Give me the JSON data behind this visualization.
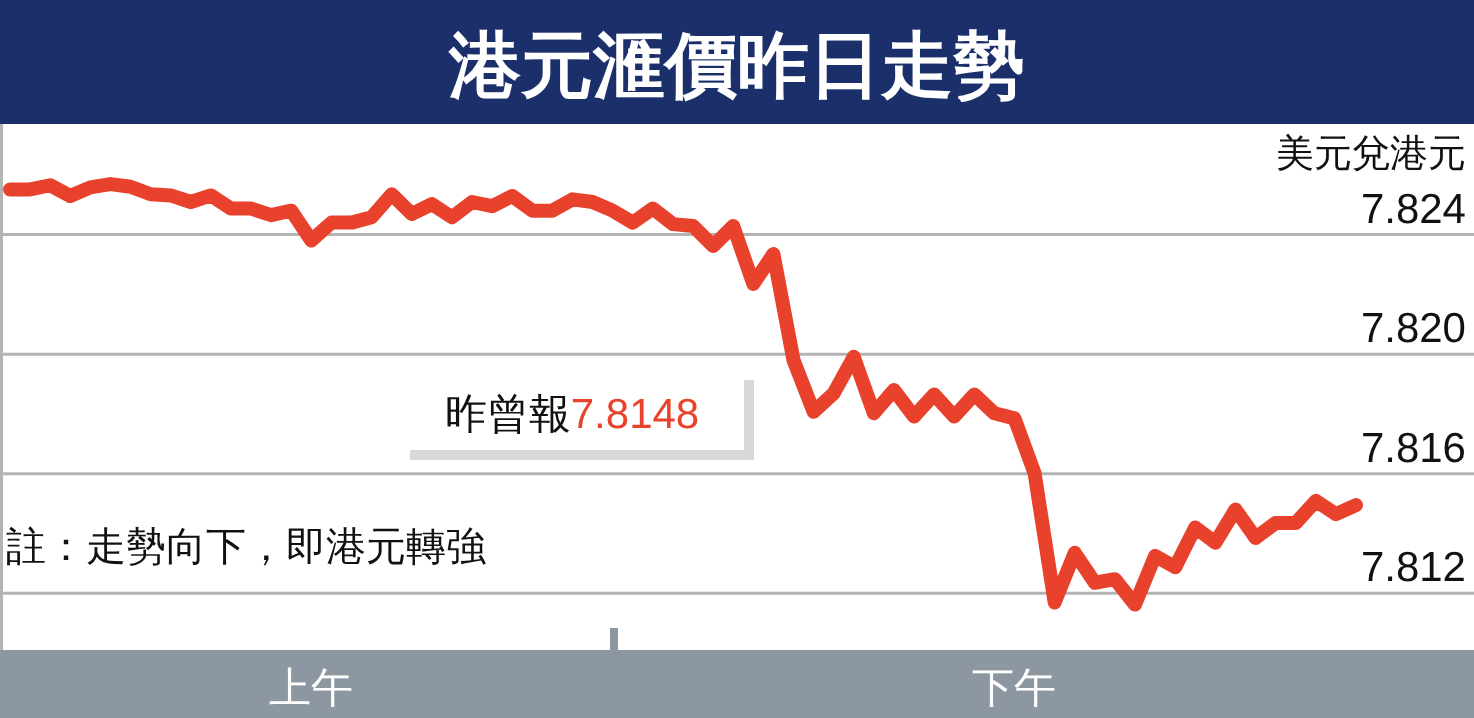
{
  "chart_data": {
    "type": "line",
    "title": "港元滙價昨日走勢",
    "ylabel": "美元兌港元",
    "annotations": [
      "昨曾報7.8148",
      "註：走勢向下，即港元轉強"
    ],
    "categories": [
      null,
      null,
      null,
      null,
      null,
      null,
      null,
      null,
      null,
      null,
      null,
      null,
      null,
      null,
      null,
      "上午",
      null,
      null,
      null,
      null,
      null,
      null,
      null,
      null,
      null,
      null,
      null,
      null,
      null,
      null,
      null,
      null,
      null,
      null,
      null,
      null,
      null,
      null,
      null,
      null,
      null,
      null,
      null,
      null,
      null,
      null,
      null,
      null,
      null,
      null,
      "下午",
      null,
      null,
      null,
      null,
      null,
      null,
      null,
      null,
      null,
      null,
      null,
      null,
      null,
      null,
      null,
      null,
      null
    ],
    "ylim": [
      7.8101,
      7.8277
    ],
    "yticks": [
      7.824,
      {
        "value": 7.82,
        "label": "7.820"
      },
      7.816,
      7.812
    ],
    "grid": "y",
    "marker": "none",
    "line_style": "solid",
    "series": [
      {
        "color": "#e8412c",
        "values": [
          7.82551,
          7.82551,
          7.82565,
          7.82529,
          7.82558,
          7.82569,
          7.8256,
          7.82535,
          7.82531,
          7.82509,
          7.82531,
          7.82487,
          7.82487,
          7.82465,
          7.8248,
          7.8238,
          7.8244,
          7.8244,
          7.82458,
          7.82535,
          7.82469,
          7.82502,
          7.82458,
          7.82509,
          7.82495,
          7.82529,
          7.8248,
          7.8248,
          7.82518,
          7.82509,
          7.8248,
          7.8244,
          7.82487,
          7.82435,
          7.82429,
          7.82362,
          7.82429,
          7.82235,
          7.82335,
          7.8198,
          7.81807,
          7.81869,
          7.81991,
          7.81802,
          7.8188,
          7.81791,
          7.81865,
          7.81791,
          7.81865,
          7.81802,
          7.81785,
          7.81602,
          7.81169,
          7.81335,
          7.81235,
          7.81247,
          7.81162,
          7.81325,
          7.81287,
          7.8142,
          7.81369,
          7.8148,
          7.81385,
          7.81435,
          7.81435,
          7.81509,
          7.81465,
          7.81495
        ]
      }
    ]
  }
}
